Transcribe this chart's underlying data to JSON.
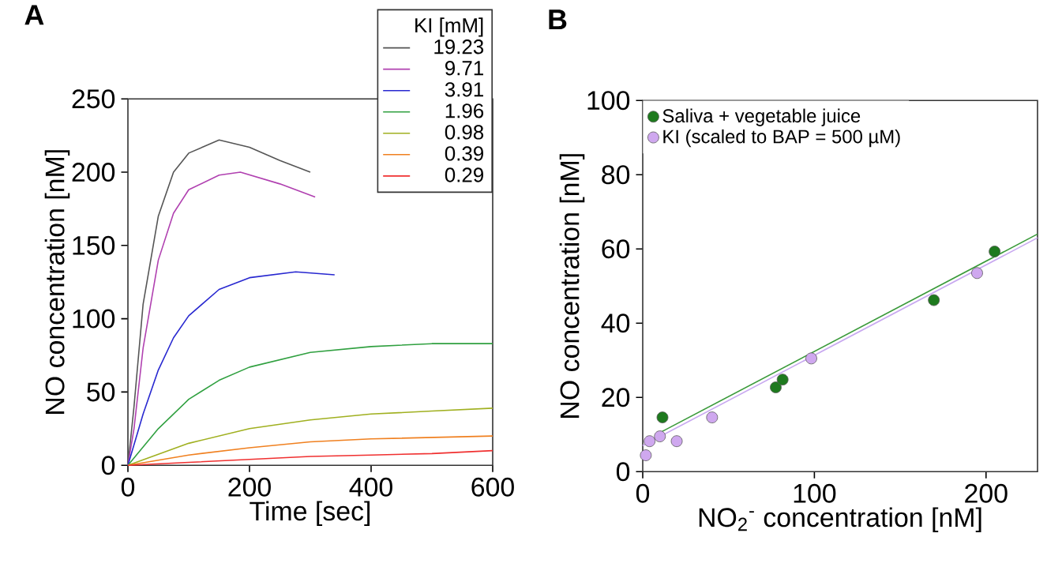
{
  "chart_data": [
    {
      "type": "line",
      "title": "A",
      "xlabel": "Time [sec]",
      "ylabel": "NO concentration [nM]",
      "legend_title": "KI [mM]",
      "legend": "top right",
      "marker": "none",
      "line_style": "solid",
      "xlim": [
        0,
        600
      ],
      "ylim": [
        0,
        250
      ],
      "xticks": [
        0,
        200,
        400,
        600
      ],
      "yticks": [
        0,
        50,
        100,
        150,
        200,
        250
      ],
      "series": [
        {
          "name": "19.23",
          "color": "#555555",
          "x": [
            0,
            10,
            25,
            50,
            75,
            100,
            150,
            200,
            250,
            300
          ],
          "values": [
            0,
            40,
            110,
            170,
            200,
            213,
            222,
            217,
            208,
            200
          ]
        },
        {
          "name": "9.71",
          "color": "#b040b0",
          "x": [
            0,
            10,
            25,
            50,
            75,
            100,
            150,
            185,
            250,
            308
          ],
          "values": [
            0,
            25,
            80,
            140,
            172,
            188,
            198,
            200,
            192,
            183
          ]
        },
        {
          "name": "3.91",
          "color": "#2828d0",
          "x": [
            0,
            25,
            50,
            75,
            100,
            150,
            200,
            276,
            340
          ],
          "values": [
            0,
            35,
            65,
            87,
            102,
            120,
            128,
            132,
            130
          ]
        },
        {
          "name": "1.96",
          "color": "#30a040",
          "x": [
            0,
            50,
            100,
            150,
            200,
            300,
            400,
            500,
            600
          ],
          "values": [
            0,
            25,
            45,
            58,
            67,
            77,
            81,
            83,
            83
          ]
        },
        {
          "name": "0.98",
          "color": "#a0b020",
          "x": [
            0,
            100,
            200,
            300,
            400,
            500,
            600
          ],
          "values": [
            0,
            15,
            25,
            31,
            35,
            37,
            39
          ]
        },
        {
          "name": "0.39",
          "color": "#f08020",
          "x": [
            0,
            100,
            200,
            300,
            400,
            600
          ],
          "values": [
            0,
            7,
            12,
            16,
            18,
            20
          ]
        },
        {
          "name": "0.29",
          "color": "#f03030",
          "x": [
            0,
            100,
            200,
            300,
            400,
            500,
            600
          ],
          "values": [
            0,
            2,
            4,
            6,
            7,
            8,
            10
          ]
        }
      ]
    },
    {
      "type": "scatter",
      "title": "B",
      "xlabel": "NO$_{2}$$^{-}$ concentration [nM]",
      "ylabel": "NO concentration [nM]",
      "legend": "top left",
      "marker": "circle",
      "xlim": [
        0,
        230
      ],
      "ylim": [
        0,
        100
      ],
      "xticks": [
        0,
        100,
        200
      ],
      "yticks": [
        0,
        20,
        40,
        60,
        80,
        100
      ],
      "series": [
        {
          "name": "Saliva + vegetable juice",
          "color": "#1e7a1e",
          "x": [
            11.5,
            77.5,
            81.5,
            169.6,
            205
          ],
          "values": [
            14.6,
            22.7,
            24.8,
            46.2,
            59.3
          ]
        },
        {
          "name": "KI (scaled to BAP = 500 µM)",
          "color": "#cfa8ef",
          "x": [
            1.8,
            4,
            10,
            19.8,
            40.4,
            98.2,
            194.8
          ],
          "values": [
            4.4,
            8.2,
            9.5,
            8.2,
            14.6,
            30.5,
            53.5
          ]
        },
        {
          "type": "line",
          "marker": "none",
          "color": "#c8a8f0",
          "x": [
            0,
            230
          ],
          "values": [
            7,
            63
          ]
        },
        {
          "type": "line",
          "marker": "none",
          "color": "#3a9a3a",
          "x": [
            10,
            230
          ],
          "values": [
            10.5,
            64
          ]
        }
      ]
    }
  ]
}
